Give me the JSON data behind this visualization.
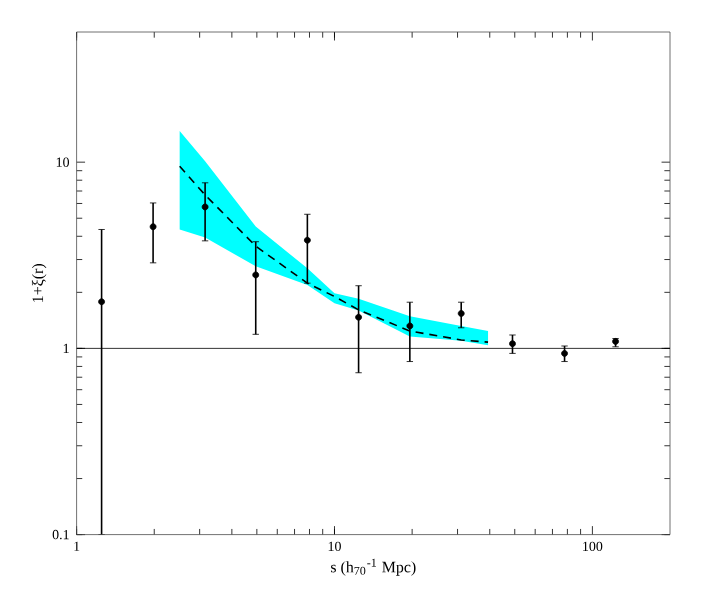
{
  "chart_data": {
    "type": "scatter",
    "xlabel": "s (h$_{70}$$^{-1}$ Mpc)",
    "ylabel": "1+ξ(r)",
    "log": "xy",
    "xlim": [
      1,
      200
    ],
    "ylim": [
      0.1,
      50
    ],
    "xticks": [
      1,
      10,
      100
    ],
    "yticks": [
      0.1,
      1,
      10
    ],
    "grid": false,
    "ref_lines": [
      {
        "axis": "y",
        "value": 1,
        "color": "#000000"
      }
    ],
    "series": [
      {
        "type": "line",
        "marker": "none",
        "line_style": "dashed",
        "color": "#000000",
        "x": [
          2.51,
          3.15,
          4.95,
          7.85,
          10,
          12.4,
          19.6,
          31,
          39.4
        ],
        "values": [
          9.5,
          6.67,
          3.54,
          2.24,
          1.9,
          1.61,
          1.24,
          1.11,
          1.08
        ],
        "lower": [
          4.35,
          3.94,
          2.76,
          2.19,
          1.75,
          1.6,
          1.16,
          1.1,
          1.04
        ],
        "upper": [
          14.7,
          10.1,
          4.52,
          2.69,
          1.98,
          1.85,
          1.49,
          1.32,
          1.24
        ]
      },
      {
        "marker": "circle",
        "color": "#000000",
        "x": [
          1.25,
          1.98,
          3.15,
          4.95,
          7.85,
          12.4,
          19.6,
          31,
          49,
          78,
          123
        ],
        "values": [
          1.78,
          4.5,
          5.75,
          2.48,
          3.81,
          1.47,
          1.32,
          1.54,
          1.06,
          0.94,
          1.09
        ],
        "errors": [
          [
            0.1,
            4.35
          ],
          [
            2.88,
            6.04
          ],
          [
            3.78,
            7.75
          ],
          [
            1.19,
            3.74
          ],
          [
            2.24,
            5.25
          ],
          [
            0.74,
            2.17
          ],
          [
            0.85,
            1.77
          ],
          [
            1.29,
            1.77
          ],
          [
            0.94,
            1.18
          ],
          [
            0.85,
            1.03
          ],
          [
            1.02,
            1.13
          ]
        ]
      }
    ]
  }
}
